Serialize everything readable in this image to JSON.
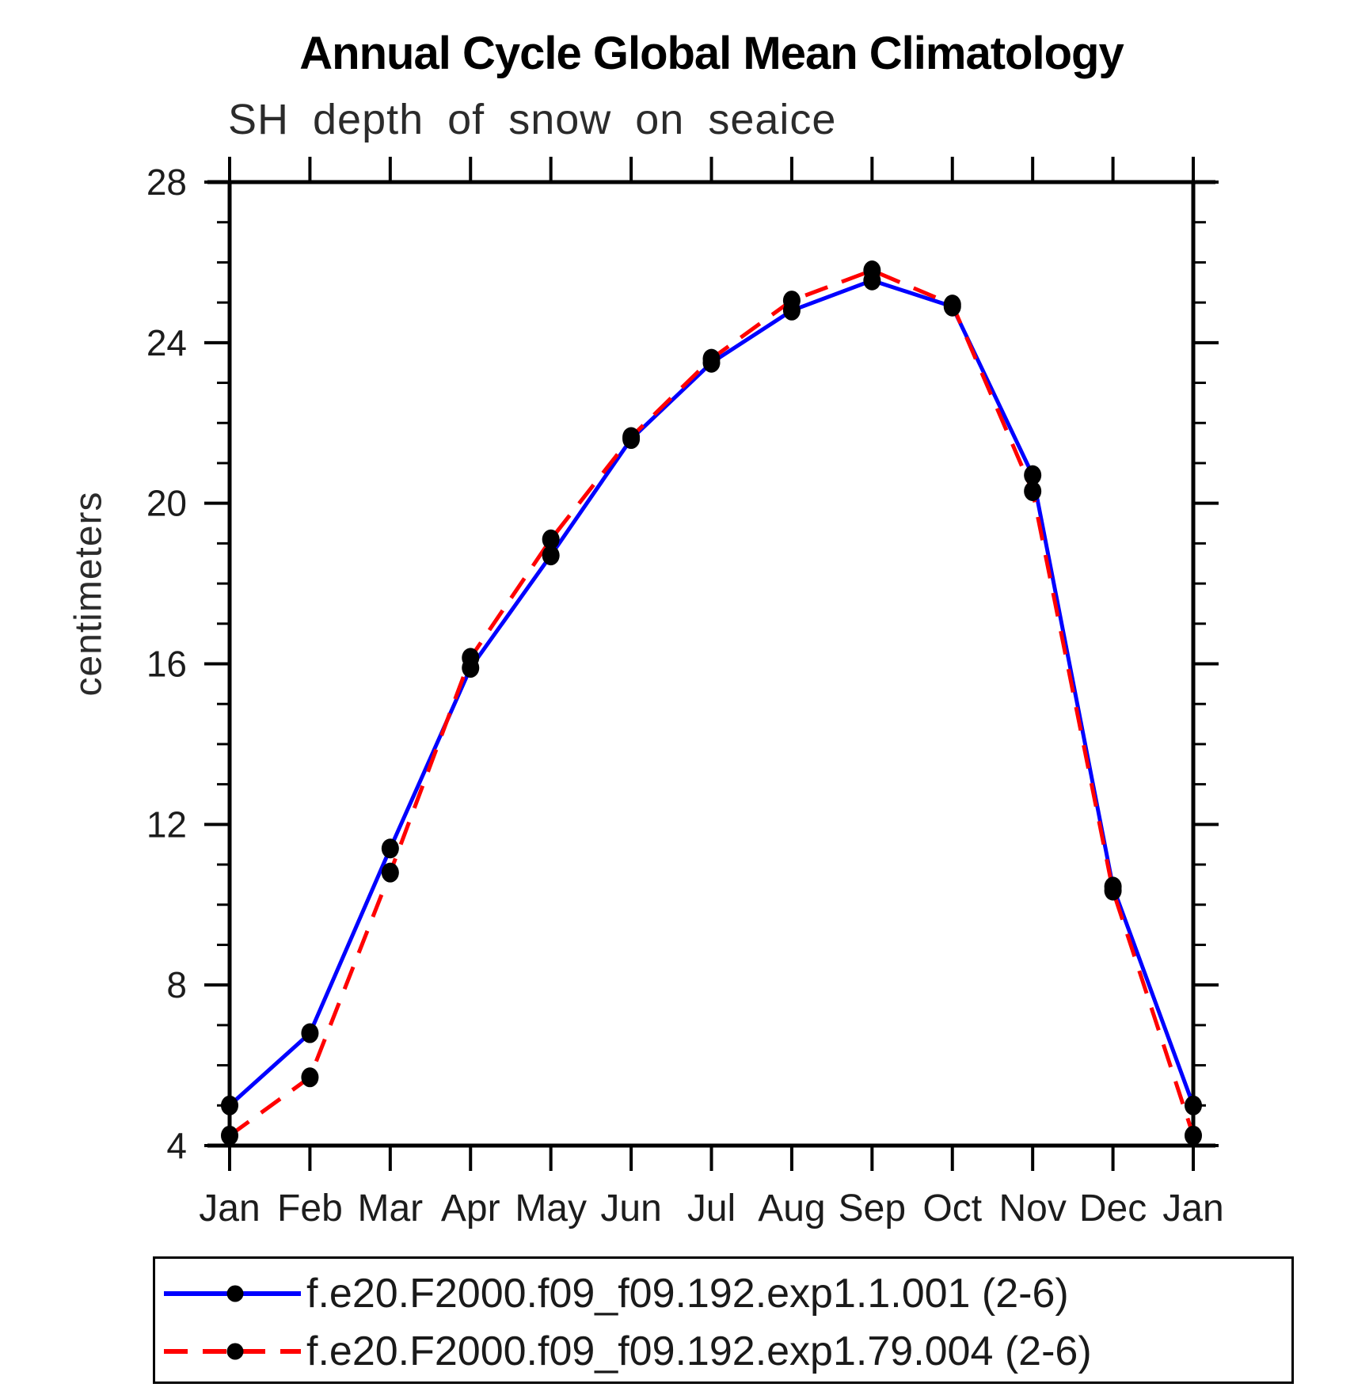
{
  "chart_data": {
    "type": "line",
    "title": "Annual Cycle Global Mean Climatology",
    "subtitle": "SH depth of snow on seaice",
    "ylabel": "centimeters",
    "categories": [
      "Jan",
      "Feb",
      "Mar",
      "Apr",
      "May",
      "Jun",
      "Jul",
      "Aug",
      "Sep",
      "Oct",
      "Nov",
      "Dec",
      "Jan"
    ],
    "ylim": [
      4,
      28
    ],
    "ytick_major": [
      4,
      8,
      12,
      16,
      20,
      24,
      28
    ],
    "ytick_minor_step": 1,
    "grid": false,
    "legend_position": "bottom",
    "axis_color": "#000000",
    "marker": "filled-circle",
    "marker_color": "#000000",
    "series": [
      {
        "name": "f.e20.F2000.f09_f09.192.exp1.1.001 (2-6)",
        "color": "#0000ff",
        "style": "solid",
        "values": [
          5.0,
          6.8,
          11.4,
          15.9,
          18.7,
          21.6,
          23.5,
          24.8,
          25.55,
          24.9,
          20.7,
          10.45,
          5.0
        ]
      },
      {
        "name": "f.e20.F2000.f09_f09.192.exp1.79.004 (2-6)",
        "color": "#ff0000",
        "style": "dashed",
        "values": [
          4.25,
          5.7,
          10.8,
          16.15,
          19.1,
          21.65,
          23.6,
          25.05,
          25.8,
          24.95,
          20.3,
          10.35,
          4.25
        ]
      }
    ]
  }
}
